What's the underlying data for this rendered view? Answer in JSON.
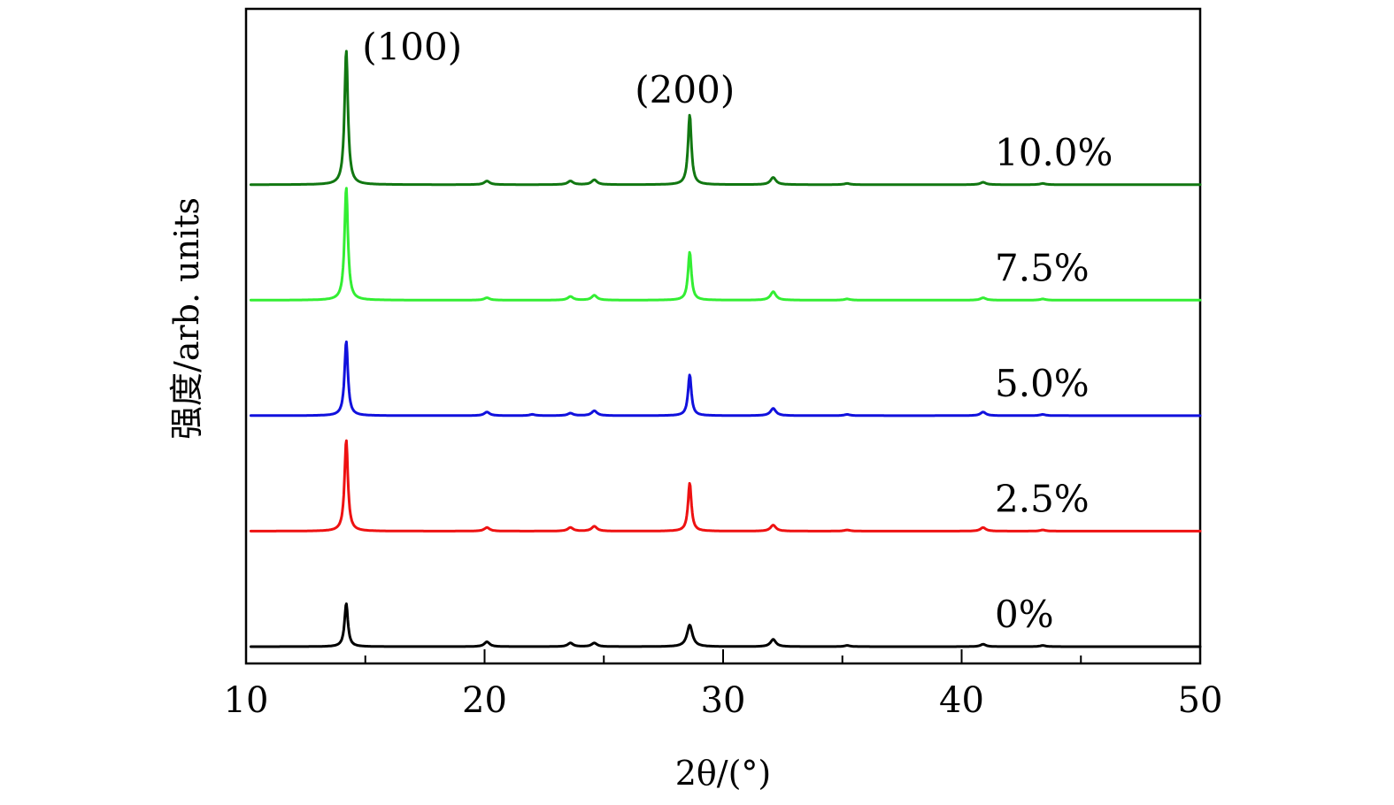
{
  "chart_data": {
    "type": "line",
    "xlabel": "2θ/(°)",
    "ylabel": "强度/arb. units",
    "xlim": [
      10,
      50
    ],
    "x_ticks": [
      10,
      20,
      30,
      40,
      50
    ],
    "y_ticks_shown": false,
    "grid": false,
    "annotations": [
      {
        "text": "(100)",
        "x": 14.2
      },
      {
        "text": "(200)",
        "x": 28.6
      }
    ],
    "baseline": 0,
    "series": [
      {
        "name": "0%",
        "color": "#000000",
        "offset": 0,
        "points": [
          [
            10.2,
            0
          ],
          [
            14.2,
            18
          ],
          [
            20.1,
            2
          ],
          [
            23.6,
            1.5
          ],
          [
            24.6,
            1.5
          ],
          [
            28.6,
            9
          ],
          [
            32.1,
            3
          ],
          [
            35.2,
            0.5
          ],
          [
            40.9,
            1
          ],
          [
            43.4,
            0.5
          ],
          [
            50,
            0
          ]
        ]
      },
      {
        "name": "2.5%",
        "color": "#ee1111",
        "offset": 48,
        "points": [
          [
            10.2,
            0
          ],
          [
            14.2,
            38
          ],
          [
            20.1,
            1.5
          ],
          [
            23.6,
            1.5
          ],
          [
            24.6,
            2
          ],
          [
            28.6,
            20
          ],
          [
            32.1,
            2.5
          ],
          [
            35.2,
            0.5
          ],
          [
            40.9,
            1.5
          ],
          [
            43.4,
            0.5
          ],
          [
            50,
            0
          ]
        ]
      },
      {
        "name": "5.0%",
        "color": "#1111dd",
        "offset": 96,
        "points": [
          [
            10.2,
            0
          ],
          [
            14.2,
            31
          ],
          [
            20.1,
            1.5
          ],
          [
            22.0,
            0.5
          ],
          [
            23.6,
            1
          ],
          [
            24.6,
            2
          ],
          [
            28.6,
            17
          ],
          [
            32.1,
            3
          ],
          [
            35.2,
            0.5
          ],
          [
            40.9,
            1.5
          ],
          [
            43.4,
            0.5
          ],
          [
            50,
            0
          ]
        ]
      },
      {
        "name": "7.5%",
        "color": "#33ee33",
        "offset": 144,
        "points": [
          [
            10.2,
            0
          ],
          [
            14.2,
            47
          ],
          [
            20.1,
            1
          ],
          [
            23.6,
            1.5
          ],
          [
            24.6,
            2
          ],
          [
            28.6,
            20
          ],
          [
            32.1,
            3.5
          ],
          [
            35.2,
            0.5
          ],
          [
            40.9,
            1
          ],
          [
            43.4,
            0.5
          ],
          [
            50,
            0
          ]
        ]
      },
      {
        "name": "10.0%",
        "color": "#117711",
        "offset": 192,
        "points": [
          [
            10.2,
            0
          ],
          [
            14.2,
            56
          ],
          [
            20.1,
            1.5
          ],
          [
            23.6,
            1.5
          ],
          [
            24.6,
            2
          ],
          [
            28.6,
            29
          ],
          [
            32.1,
            3
          ],
          [
            35.2,
            0.5
          ],
          [
            40.9,
            1
          ],
          [
            43.4,
            0.5
          ],
          [
            50,
            0
          ]
        ]
      }
    ]
  }
}
